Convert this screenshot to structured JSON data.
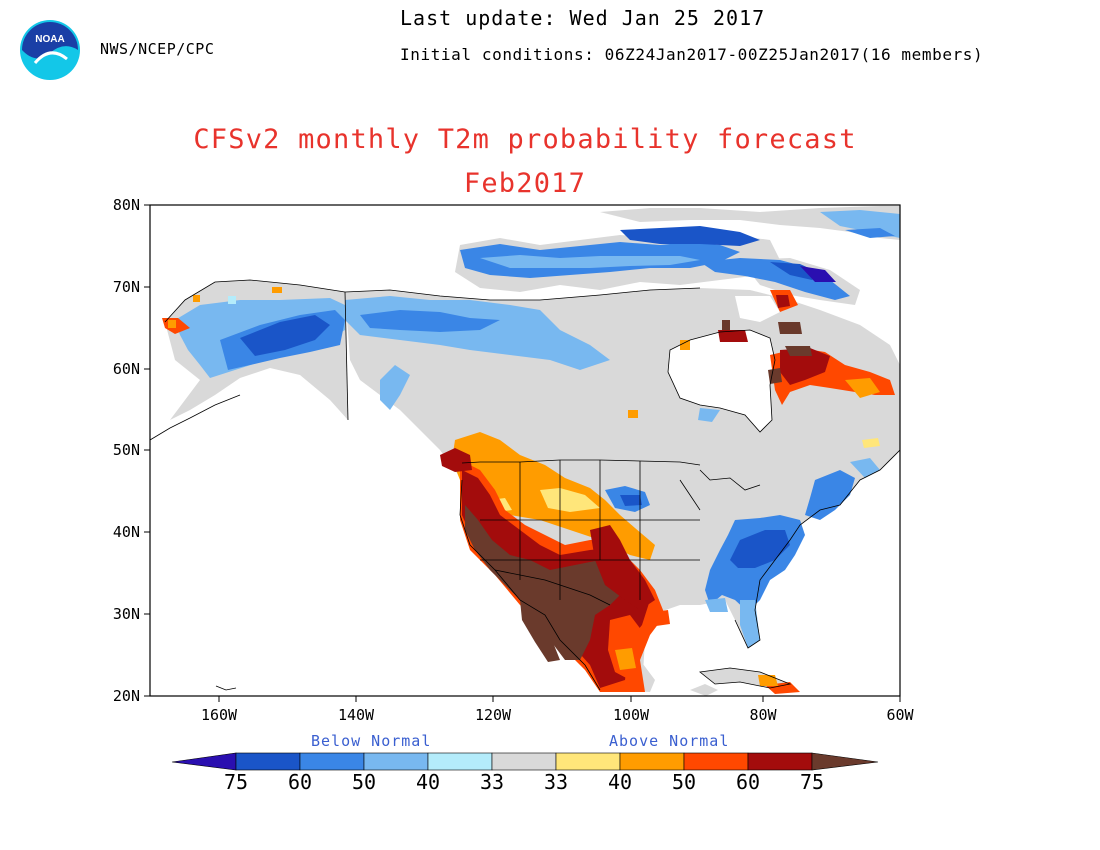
{
  "header": {
    "org": "NWS/NCEP/CPC",
    "last_update": "Last update: Wed Jan 25 2017",
    "initial_conditions": "Initial conditions: 06Z24Jan2017-00Z25Jan2017(16 members)",
    "logo_text": "NOAA"
  },
  "title": "CFSv2 monthly T2m probability forecast",
  "subtitle": "Feb2017",
  "axes": {
    "lat_labels": [
      "80N",
      "70N",
      "60N",
      "50N",
      "40N",
      "30N",
      "20N"
    ],
    "lon_labels": [
      "160W",
      "140W",
      "120W",
      "100W",
      "80W",
      "60W"
    ]
  },
  "legend": {
    "below_label": "Below Normal",
    "above_label": "Above Normal",
    "tick_labels": [
      "75",
      "60",
      "50",
      "40",
      "33",
      "33",
      "40",
      "50",
      "60",
      "75"
    ],
    "colors": {
      "below_75": "#2a0fb0",
      "below_60": "#1a55c8",
      "below_50": "#3a86e6",
      "below_40": "#78b8f0",
      "below_33": "#b4ecfb",
      "normal": "#d9d9d9",
      "above_33": "#ffe67a",
      "above_40": "#ff9c00",
      "above_50": "#ff4800",
      "above_60": "#a30c0c",
      "above_75": "#6a3a2c"
    }
  }
}
